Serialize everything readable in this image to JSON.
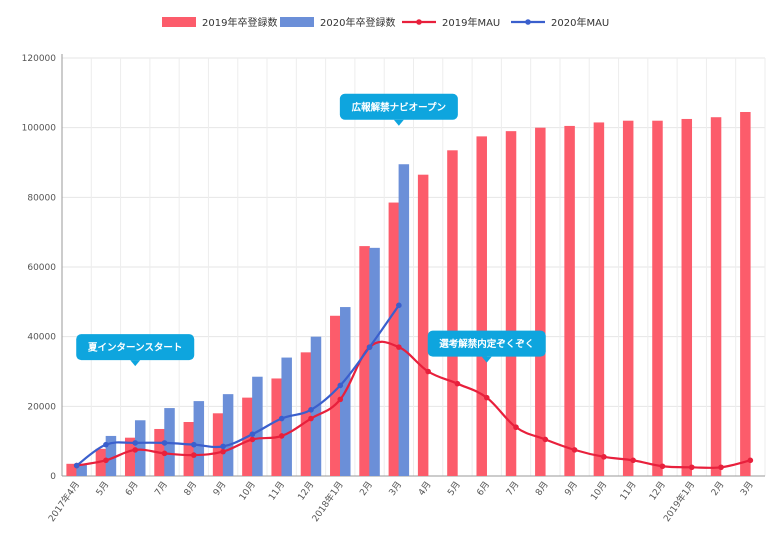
{
  "chart_data": {
    "type": "bar+line",
    "title": "",
    "xlabel": "",
    "ylabel": "",
    "ylim": [
      0,
      120000
    ],
    "yticks": [
      0,
      20000,
      40000,
      60000,
      80000,
      100000,
      120000
    ],
    "grid": true,
    "legend_placement": "top-center",
    "categories": [
      "2017年4月",
      "5月",
      "6月",
      "7月",
      "8月",
      "9月",
      "10月",
      "11月",
      "12月",
      "2018年1月",
      "2月",
      "3月",
      "4月",
      "5月",
      "6月",
      "7月",
      "8月",
      "9月",
      "10月",
      "11月",
      "12月",
      "2019年1月",
      "2月",
      "3月"
    ],
    "series": [
      {
        "name": "2019年卒登録数",
        "kind": "bar",
        "color": "#fc5c6b",
        "values": [
          3500,
          7800,
          11000,
          13500,
          15500,
          18000,
          22500,
          28000,
          35500,
          46000,
          66000,
          78500,
          86500,
          93500,
          97500,
          99000,
          100000,
          100500,
          101500,
          102000,
          102000,
          102500,
          103000,
          104500
        ]
      },
      {
        "name": "2020年卒登録数",
        "kind": "bar",
        "color": "#6b8fd8",
        "values": [
          3500,
          11500,
          16000,
          19500,
          21500,
          23500,
          28500,
          34000,
          40000,
          48500,
          65500,
          89500,
          null,
          null,
          null,
          null,
          null,
          null,
          null,
          null,
          null,
          null,
          null,
          null
        ]
      },
      {
        "name": "2019年MAU",
        "kind": "line",
        "color": "#e8203c",
        "values": [
          3000,
          4500,
          7500,
          6500,
          6000,
          7000,
          10500,
          11500,
          16500,
          22000,
          37000,
          37000,
          30000,
          26500,
          22500,
          14000,
          10500,
          7500,
          5500,
          4500,
          2800,
          2500,
          2500,
          4500
        ]
      },
      {
        "name": "2020年MAU",
        "kind": "line",
        "color": "#3a5fcd",
        "values": [
          3000,
          9000,
          9500,
          9500,
          9000,
          8500,
          12000,
          16500,
          19000,
          26000,
          37000,
          49000,
          null,
          null,
          null,
          null,
          null,
          null,
          null,
          null,
          null,
          null,
          null,
          null
        ]
      }
    ],
    "annotations": [
      {
        "text": "夏インターンスタート",
        "category_index": 2,
        "value": 37000
      },
      {
        "text": "広報解禁ナビオープン",
        "category_index": 11,
        "value": 106000
      },
      {
        "text": "選考解禁内定ぞくぞく",
        "category_index": 14,
        "value": 38000
      }
    ]
  }
}
